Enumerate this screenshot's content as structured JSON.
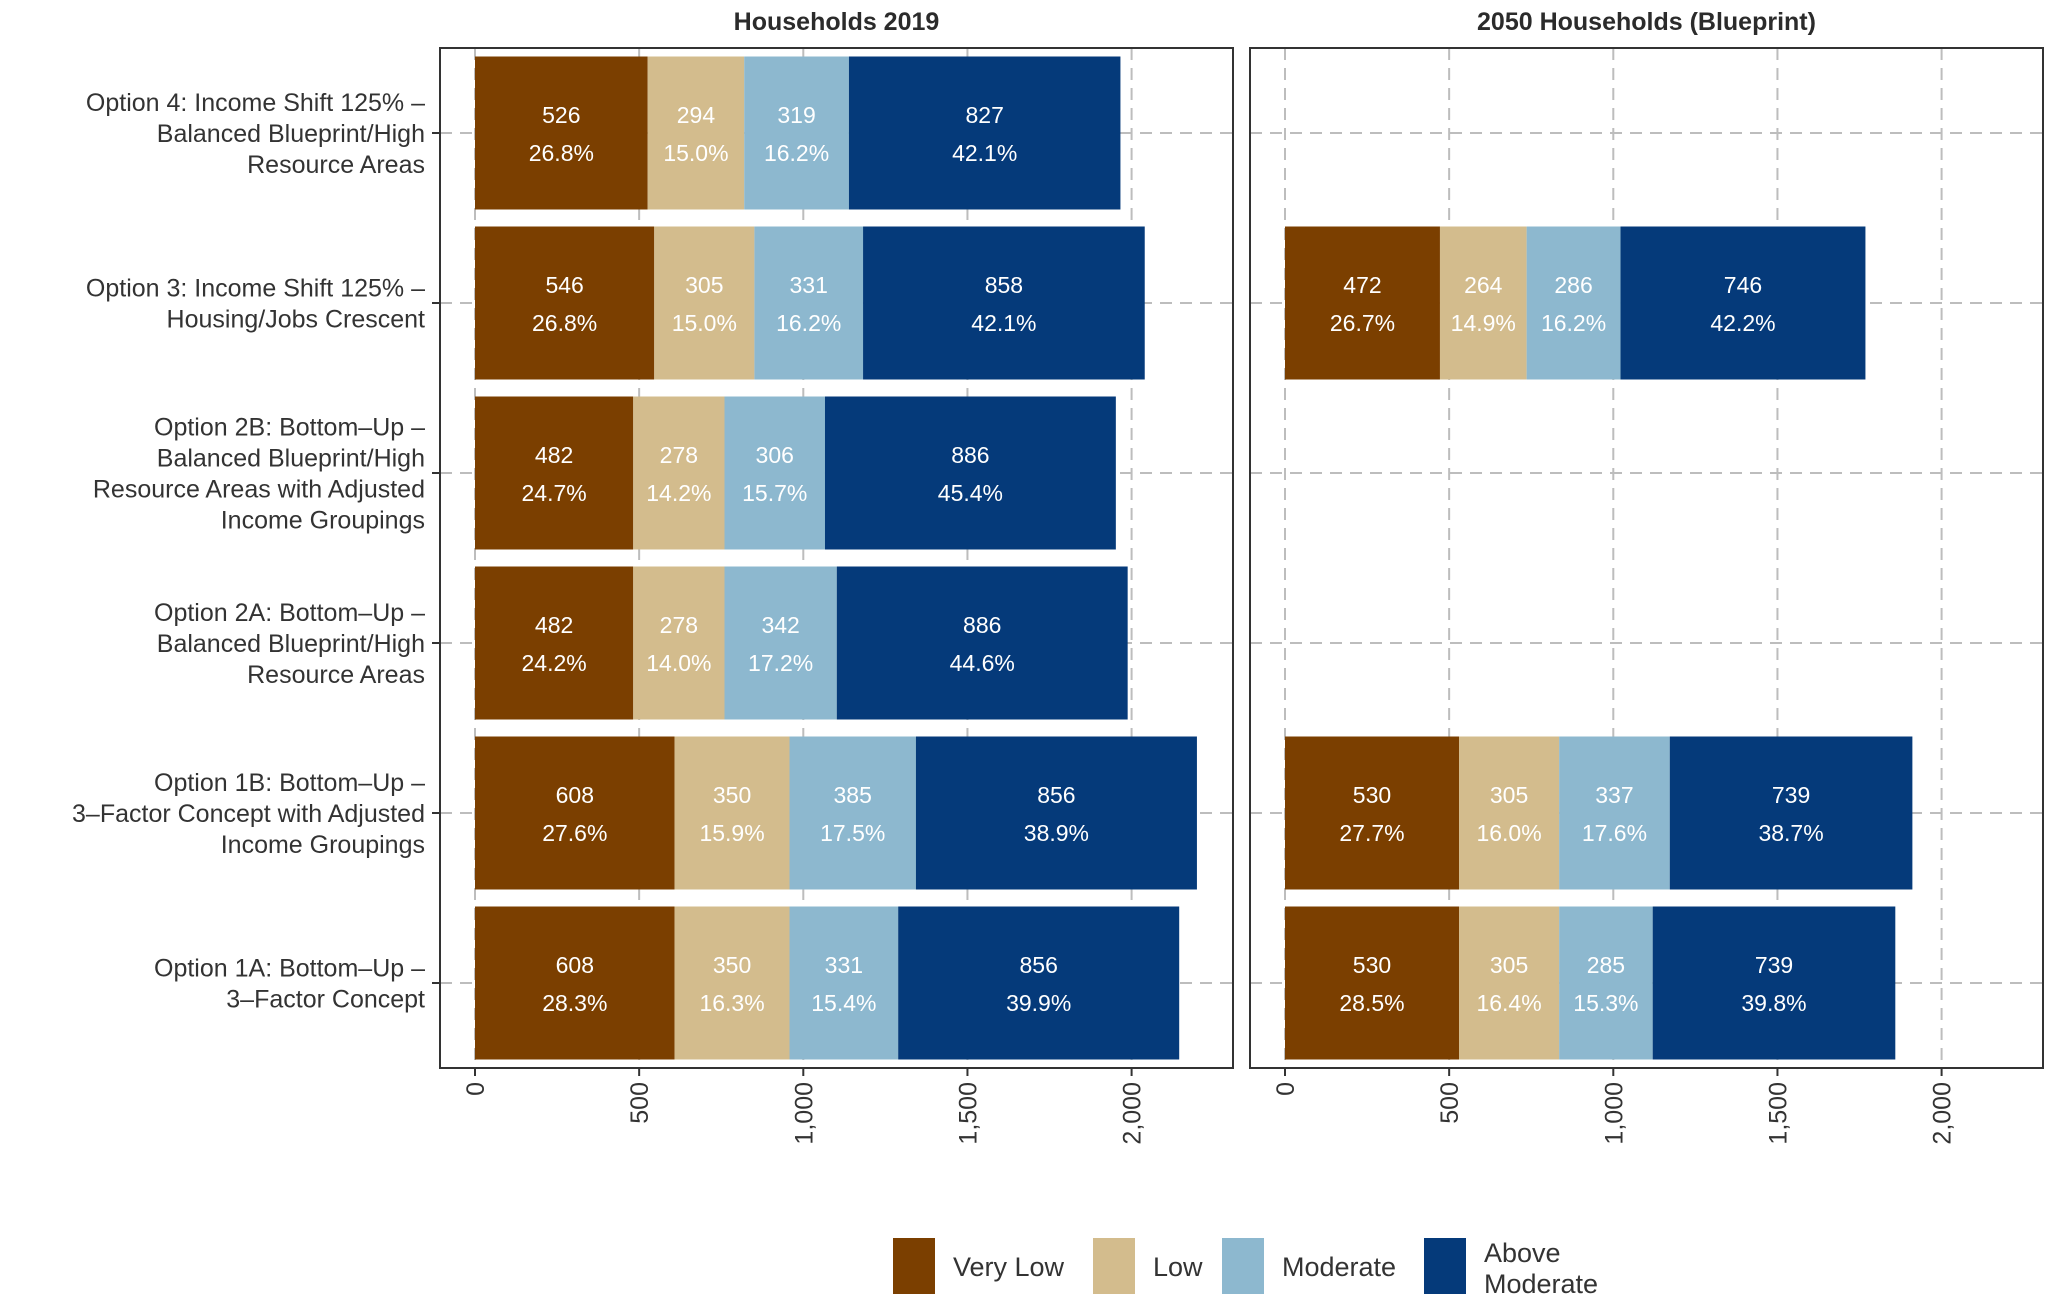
{
  "colors": {
    "Very Low": "#7b3f00",
    "Low": "#d3bc8d",
    "Moderate": "#8db8cf",
    "Above Moderate": "#053a7a"
  },
  "label_text_colors": {
    "Very Low": "#ffffff",
    "Low": "#ffffff",
    "Moderate": "#ffffff",
    "Above Moderate": "#ffffff"
  },
  "legend": {
    "position": "bottom",
    "items": [
      {
        "name": "Very Low",
        "label": "Very Low"
      },
      {
        "name": "Low",
        "label": "Low"
      },
      {
        "name": "Moderate",
        "label": "Moderate"
      },
      {
        "name": "Above Moderate",
        "label": "Above Moderate"
      }
    ]
  },
  "chart_data": {
    "type": "bar",
    "orientation": "horizontal",
    "stacked": true,
    "grid": true,
    "categories": [
      "Option 4: Income Shift 125% – Balanced Blueprint/High Resource Areas",
      "Option 3: Income Shift 125% – Housing/Jobs Crescent",
      "Option 2B: Bottom–Up – Balanced Blueprint/High Resource Areas with Adjusted Income Groupings",
      "Option 2A: Bottom–Up – Balanced Blueprint/High Resource Areas",
      "Option 1B: Bottom–Up – 3–Factor Concept with Adjusted Income Groupings",
      "Option 1A: Bottom–Up – 3–Factor Concept"
    ],
    "category_lines": [
      [
        "Option 4: Income Shift 125% –",
        "Balanced Blueprint/High",
        "Resource Areas"
      ],
      [
        "Option 3: Income Shift 125% –",
        "Housing/Jobs Crescent"
      ],
      [
        "Option 2B: Bottom–Up –",
        "Balanced Blueprint/High",
        "Resource Areas with Adjusted",
        "Income Groupings"
      ],
      [
        "Option 2A: Bottom–Up –",
        "Balanced Blueprint/High",
        "Resource Areas"
      ],
      [
        "Option 1B: Bottom–Up –",
        "3–Factor Concept with Adjusted",
        "Income Groupings"
      ],
      [
        "Option 1A: Bottom–Up –",
        "3–Factor Concept"
      ]
    ],
    "xlim": [
      0,
      2000
    ],
    "x_ticks": [
      {
        "value": 0,
        "label": "0"
      },
      {
        "value": 500,
        "label": "500"
      },
      {
        "value": 1000,
        "label": "1,000"
      },
      {
        "value": 1500,
        "label": "1,500"
      },
      {
        "value": 2000,
        "label": "2,000"
      }
    ],
    "series_names": [
      "Very Low",
      "Low",
      "Moderate",
      "Above Moderate"
    ],
    "panels": [
      {
        "title": "Households 2019",
        "bars": [
          {
            "values": [
              526,
              294,
              319,
              827
            ],
            "percents": [
              "26.8%",
              "15.0%",
              "16.2%",
              "42.1%"
            ]
          },
          {
            "values": [
              546,
              305,
              331,
              858
            ],
            "percents": [
              "26.8%",
              "15.0%",
              "16.2%",
              "42.1%"
            ]
          },
          {
            "values": [
              482,
              278,
              306,
              886
            ],
            "percents": [
              "24.7%",
              "14.2%",
              "15.7%",
              "45.4%"
            ]
          },
          {
            "values": [
              482,
              278,
              342,
              886
            ],
            "percents": [
              "24.2%",
              "14.0%",
              "17.2%",
              "44.6%"
            ]
          },
          {
            "values": [
              608,
              350,
              385,
              856
            ],
            "percents": [
              "27.6%",
              "15.9%",
              "17.5%",
              "38.9%"
            ]
          },
          {
            "values": [
              608,
              350,
              331,
              856
            ],
            "percents": [
              "28.3%",
              "16.3%",
              "15.4%",
              "39.9%"
            ]
          }
        ]
      },
      {
        "title": "2050 Households (Blueprint)",
        "bars": [
          null,
          {
            "values": [
              472,
              264,
              286,
              746
            ],
            "percents": [
              "26.7%",
              "14.9%",
              "16.2%",
              "42.2%"
            ]
          },
          null,
          null,
          {
            "values": [
              530,
              305,
              337,
              739
            ],
            "percents": [
              "27.7%",
              "16.0%",
              "17.6%",
              "38.7%"
            ]
          },
          {
            "values": [
              530,
              305,
              285,
              739
            ],
            "percents": [
              "28.5%",
              "16.4%",
              "15.3%",
              "39.8%"
            ]
          }
        ]
      }
    ]
  }
}
